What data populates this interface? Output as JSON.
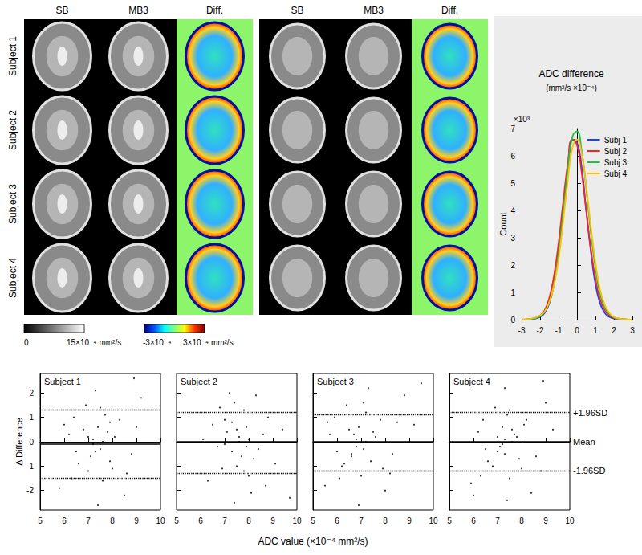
{
  "panels": [
    {
      "columns": [
        "SB",
        "MB3",
        "Diff."
      ]
    },
    {
      "columns": [
        "SB",
        "MB3",
        "Diff."
      ]
    }
  ],
  "rows": [
    "Subject 1",
    "Subject 2",
    "Subject 3",
    "Subject 4"
  ],
  "colorbars": [
    {
      "labels": [
        "0",
        "15×10⁻⁴ mm²/s"
      ],
      "colors": [
        "#000000",
        "#ffffff"
      ]
    },
    {
      "labels": [
        "-3×10⁻⁴",
        "3×10⁻⁴ mm²/s"
      ],
      "colors": [
        "#00008f",
        "#0050ff",
        "#00ffff",
        "#80ff80",
        "#ffff00",
        "#ff3000",
        "#800000"
      ]
    }
  ],
  "scatter_x_label": "ADC value (×10⁻⁴ mm²/s)",
  "chart_data": [
    {
      "type": "line",
      "title": "ADC difference",
      "subtitle": "(mm²/s ×10⁻⁴)",
      "y_label": "Count",
      "y_label_note": "×10³",
      "x": [
        -3,
        -2.5,
        -2,
        -1.75,
        -1.5,
        -1.25,
        -1,
        -0.75,
        -0.5,
        -0.25,
        0,
        0.25,
        0.5,
        0.75,
        1,
        1.25,
        1.5,
        1.75,
        2,
        2.5,
        3
      ],
      "series": [
        {
          "name": "Subj 1",
          "color": "#1f3fff",
          "values": [
            0,
            0.02,
            0.1,
            0.25,
            0.6,
            1.3,
            2.4,
            3.9,
            5.5,
            6.6,
            6.5,
            5.6,
            4.0,
            2.5,
            1.3,
            0.6,
            0.25,
            0.1,
            0.04,
            0.01,
            0
          ]
        },
        {
          "name": "Subj 2",
          "color": "#ff2020",
          "values": [
            0,
            0.03,
            0.15,
            0.35,
            0.8,
            1.6,
            2.8,
            4.3,
            5.7,
            6.6,
            6.4,
            5.4,
            4.0,
            2.6,
            1.5,
            0.75,
            0.35,
            0.15,
            0.06,
            0.01,
            0
          ]
        },
        {
          "name": "Subj 3",
          "color": "#20c040",
          "values": [
            0,
            0.02,
            0.12,
            0.3,
            0.65,
            1.3,
            2.4,
            3.9,
            5.5,
            6.7,
            6.9,
            6.2,
            4.8,
            3.2,
            1.9,
            0.95,
            0.45,
            0.2,
            0.08,
            0.02,
            0
          ]
        },
        {
          "name": "Subj 4",
          "color": "#ffc000",
          "values": [
            0,
            0.03,
            0.15,
            0.3,
            0.65,
            1.25,
            2.2,
            3.6,
            5.1,
            6.3,
            6.6,
            6.1,
            4.9,
            3.4,
            2.1,
            1.1,
            0.55,
            0.25,
            0.1,
            0.02,
            0
          ]
        }
      ],
      "xlim": [
        -3,
        3
      ],
      "xticks": [
        -3,
        -2,
        -1,
        0,
        1,
        2,
        3
      ],
      "ylim": [
        0,
        7
      ],
      "yticks": [
        0,
        1,
        2,
        3,
        4,
        5,
        6,
        7
      ],
      "legend": "top-right",
      "grid": false
    },
    {
      "type": "scatter",
      "title": "Subject 1",
      "y_label": "Δ Difference",
      "color": "#000000",
      "points": [
        [
          7.2,
          0.1
        ],
        [
          7.5,
          -0.3
        ],
        [
          6.8,
          0.5
        ],
        [
          7.9,
          -0.8
        ],
        [
          7.0,
          -1.2
        ],
        [
          8.3,
          0.9
        ],
        [
          6.5,
          -0.4
        ],
        [
          7.7,
          1.1
        ],
        [
          8.8,
          -0.5
        ],
        [
          6.2,
          0.3
        ],
        [
          7.4,
          0.6
        ],
        [
          7.1,
          -0.6
        ],
        [
          8.1,
          0.2
        ],
        [
          7.6,
          -1.6
        ],
        [
          6.9,
          1.5
        ],
        [
          9.2,
          1.8
        ],
        [
          5.8,
          -1.9
        ],
        [
          7.3,
          2.1
        ],
        [
          8.5,
          -2.2
        ],
        [
          7.8,
          0.4
        ],
        [
          6.6,
          -0.9
        ],
        [
          7.2,
          -0.1
        ],
        [
          8.0,
          -1.1
        ],
        [
          7.5,
          1.4
        ],
        [
          6.4,
          1.0
        ],
        [
          9.0,
          0.6
        ],
        [
          7.0,
          0.2
        ],
        [
          7.9,
          0.8
        ],
        [
          6.3,
          -1.5
        ],
        [
          8.6,
          -1.3
        ],
        [
          7.4,
          -2.6
        ],
        [
          8.9,
          2.6
        ],
        [
          7.6,
          0.0
        ],
        [
          7.3,
          -0.4
        ],
        [
          6.0,
          0.7
        ]
      ],
      "lines": [
        {
          "value": 1.3,
          "line_style": "dotted"
        },
        {
          "value": -0.1,
          "line_style": "solid"
        },
        {
          "value": -1.5,
          "line_style": "dotted"
        }
      ],
      "xlim": [
        5,
        10
      ],
      "xticks": [
        5,
        6,
        7,
        8,
        9,
        10
      ],
      "ylim": [
        -2.8,
        2.8
      ],
      "yticks": [
        -2,
        -1,
        0,
        1,
        2
      ],
      "grid": false
    },
    {
      "type": "scatter",
      "title": "Subject 2",
      "color": "#000000",
      "points": [
        [
          7.6,
          0.2
        ],
        [
          7.3,
          -0.4
        ],
        [
          7.9,
          0.6
        ],
        [
          8.2,
          -0.7
        ],
        [
          7.0,
          0.9
        ],
        [
          7.5,
          -1.0
        ],
        [
          8.6,
          0.3
        ],
        [
          6.7,
          -0.2
        ],
        [
          7.8,
          1.3
        ],
        [
          8.0,
          -1.4
        ],
        [
          6.9,
          -1.1
        ],
        [
          7.4,
          1.6
        ],
        [
          8.8,
          1.0
        ],
        [
          7.1,
          0.4
        ],
        [
          8.4,
          -0.3
        ],
        [
          6.5,
          0.7
        ],
        [
          7.7,
          -0.6
        ],
        [
          9.1,
          -0.9
        ],
        [
          7.2,
          2.0
        ],
        [
          8.1,
          -2.1
        ],
        [
          6.3,
          -1.6
        ],
        [
          7.6,
          0.0
        ],
        [
          8.3,
          1.9
        ],
        [
          7.0,
          -0.1
        ],
        [
          7.9,
          -0.2
        ],
        [
          6.8,
          1.4
        ],
        [
          8.7,
          -1.8
        ],
        [
          7.4,
          -2.5
        ],
        [
          9.4,
          0.5
        ],
        [
          6.1,
          0.1
        ],
        [
          7.5,
          0.5
        ],
        [
          8.0,
          0.1
        ],
        [
          7.3,
          0.8
        ],
        [
          7.8,
          -1.2
        ],
        [
          9.7,
          -2.3
        ]
      ],
      "lines": [
        {
          "value": 1.2,
          "line_style": "dotted"
        },
        {
          "value": 0.0,
          "line_style": "solid"
        },
        {
          "value": -1.3,
          "line_style": "dotted"
        }
      ],
      "xlim": [
        5,
        10
      ],
      "xticks": [
        5,
        6,
        7,
        8,
        9,
        10
      ],
      "ylim": [
        -2.8,
        2.8
      ],
      "yticks": [
        -2,
        -1,
        0,
        1,
        2
      ],
      "tick_labels": "x",
      "grid": false
    },
    {
      "type": "scatter",
      "title": "Subject 3",
      "color": "#000000",
      "points": [
        [
          6.8,
          0.1
        ],
        [
          7.1,
          -0.3
        ],
        [
          6.5,
          0.5
        ],
        [
          7.4,
          -0.8
        ],
        [
          6.2,
          -1.0
        ],
        [
          7.8,
          0.9
        ],
        [
          6.0,
          -0.4
        ],
        [
          7.2,
          1.2
        ],
        [
          8.3,
          -0.5
        ],
        [
          5.7,
          0.3
        ],
        [
          6.9,
          0.6
        ],
        [
          6.6,
          -0.6
        ],
        [
          7.6,
          0.2
        ],
        [
          7.0,
          -1.4
        ],
        [
          6.4,
          1.5
        ],
        [
          8.8,
          1.9
        ],
        [
          5.5,
          -1.8
        ],
        [
          7.3,
          2.2
        ],
        [
          8.0,
          -2.0
        ],
        [
          7.5,
          0.4
        ],
        [
          6.3,
          -0.9
        ],
        [
          6.8,
          -0.2
        ],
        [
          7.9,
          -1.1
        ],
        [
          7.1,
          1.6
        ],
        [
          5.9,
          1.0
        ],
        [
          9.2,
          0.7
        ],
        [
          6.7,
          0.3
        ],
        [
          8.5,
          0.8
        ],
        [
          6.1,
          -1.5
        ],
        [
          8.2,
          -1.3
        ],
        [
          6.9,
          -2.6
        ],
        [
          9.5,
          2.4
        ],
        [
          7.2,
          0.0
        ],
        [
          6.6,
          -0.5
        ],
        [
          5.6,
          0.8
        ]
      ],
      "lines": [
        {
          "value": 1.1,
          "line_style": "dotted"
        },
        {
          "value": 0.0,
          "line_style": "solid"
        },
        {
          "value": -1.2,
          "line_style": "dotted"
        }
      ],
      "xlim": [
        5,
        10
      ],
      "xticks": [
        5,
        6,
        7,
        8,
        9,
        10
      ],
      "ylim": [
        -2.8,
        2.8
      ],
      "yticks": [
        -2,
        -1,
        0,
        1,
        2
      ],
      "tick_labels": "x",
      "grid": false
    },
    {
      "type": "scatter",
      "title": "Subject 4",
      "color": "#000000",
      "points": [
        [
          7.3,
          0.1
        ],
        [
          7.0,
          -0.4
        ],
        [
          7.6,
          0.5
        ],
        [
          7.9,
          -0.7
        ],
        [
          6.8,
          -1.0
        ],
        [
          8.2,
          0.9
        ],
        [
          6.5,
          -0.3
        ],
        [
          7.4,
          1.1
        ],
        [
          8.6,
          -0.6
        ],
        [
          6.2,
          0.4
        ],
        [
          7.2,
          0.6
        ],
        [
          7.1,
          -0.2
        ],
        [
          7.8,
          0.2
        ],
        [
          7.5,
          -1.5
        ],
        [
          6.9,
          1.4
        ],
        [
          9.0,
          1.6
        ],
        [
          5.9,
          -1.7
        ],
        [
          7.3,
          2.2
        ],
        [
          8.4,
          -2.1
        ],
        [
          7.7,
          0.3
        ],
        [
          6.6,
          -0.8
        ],
        [
          7.2,
          -0.1
        ],
        [
          8.0,
          -1.1
        ],
        [
          7.5,
          1.3
        ],
        [
          6.4,
          0.9
        ],
        [
          9.3,
          0.5
        ],
        [
          7.0,
          0.2
        ],
        [
          8.1,
          0.7
        ],
        [
          6.3,
          -1.4
        ],
        [
          8.8,
          -1.2
        ],
        [
          7.4,
          -2.4
        ],
        [
          8.9,
          2.5
        ],
        [
          7.6,
          0.0
        ],
        [
          7.3,
          -0.5
        ],
        [
          6.0,
          -2.2
        ]
      ],
      "lines": [
        {
          "value": 1.2,
          "line_style": "dotted",
          "label": "+1.96SD"
        },
        {
          "value": 0.0,
          "line_style": "solid",
          "label": "Mean"
        },
        {
          "value": -1.2,
          "line_style": "dotted",
          "label": "-1.96SD"
        }
      ],
      "xlim": [
        5,
        10
      ],
      "xticks": [
        5,
        6,
        7,
        8,
        9,
        10
      ],
      "ylim": [
        -2.8,
        2.8
      ],
      "yticks": [
        -2,
        -1,
        0,
        1,
        2
      ],
      "tick_labels": "x",
      "grid": false
    }
  ]
}
